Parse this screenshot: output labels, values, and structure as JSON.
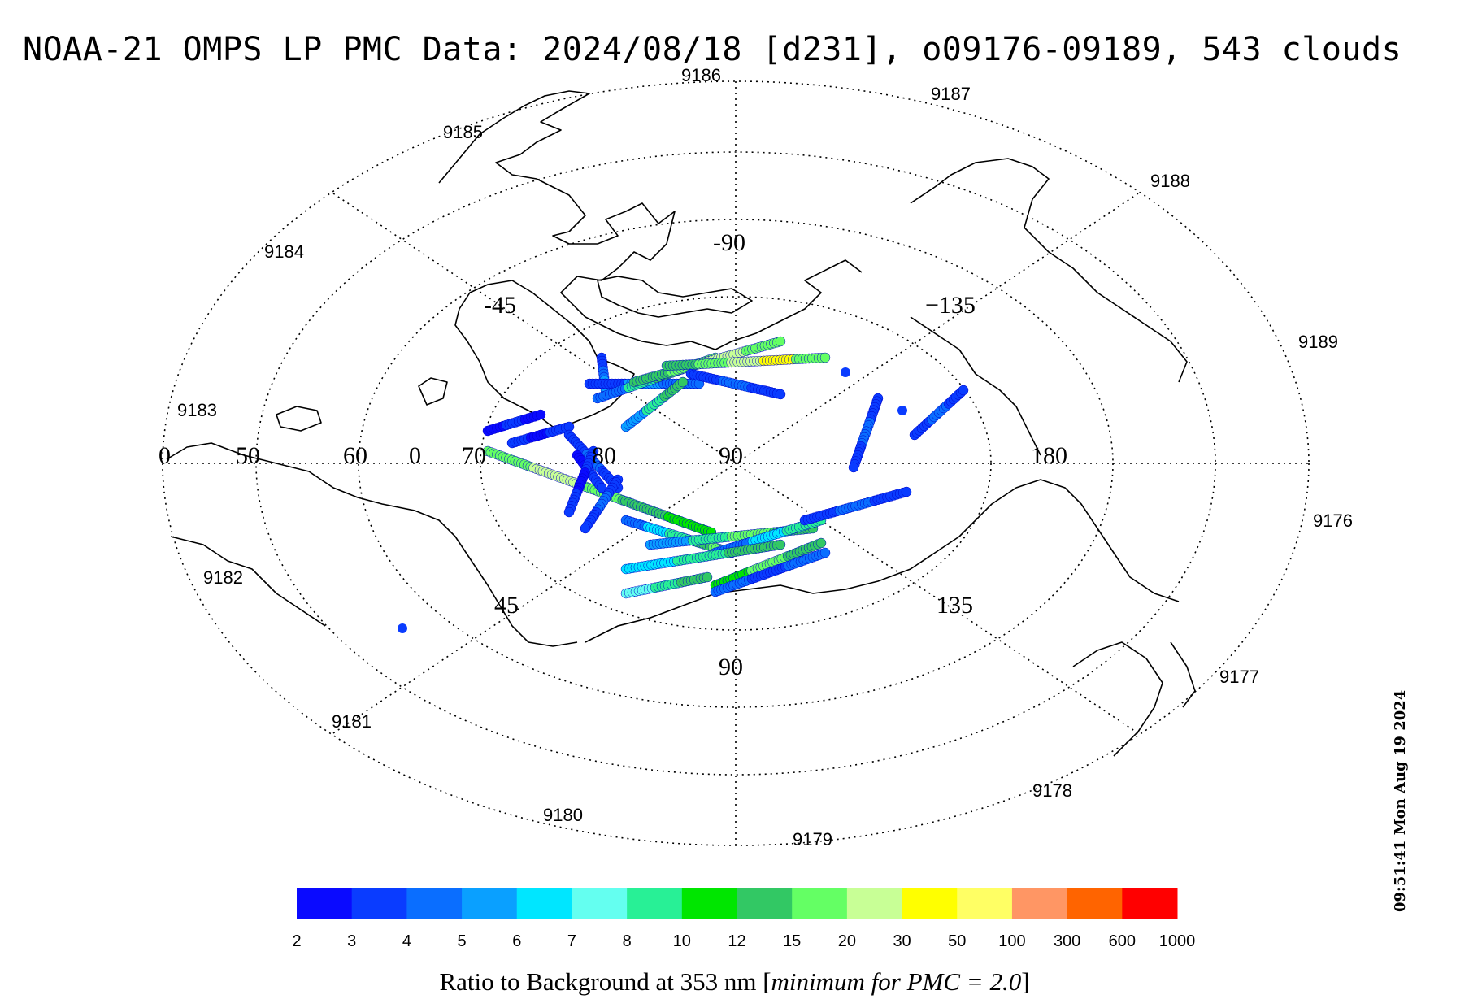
{
  "title": "NOAA-21 OMPS LP PMC Data: 2024/08/18 [d231], o09176-09189, 543 clouds",
  "timestamp": "09:51:41 Mon Aug 19 2024",
  "colorbar": {
    "caption_prefix": "Ratio to Background at 353 nm [",
    "caption_italic": "minimum for PMC = 2.0",
    "caption_suffix": "]",
    "ticks": [
      "2",
      "3",
      "4",
      "5",
      "6",
      "7",
      "8",
      "10",
      "12",
      "15",
      "20",
      "30",
      "50",
      "100",
      "300",
      "600",
      "1000"
    ],
    "colors": [
      "#0a0aff",
      "#0a3cff",
      "#0a6eff",
      "#0aa0ff",
      "#00e6ff",
      "#64fff0",
      "#28f096",
      "#00e600",
      "#32c864",
      "#64ff64",
      "#c8ff96",
      "#ffff00",
      "#ffff64",
      "#ff9664",
      "#ff6400",
      "#ff0000"
    ]
  },
  "map": {
    "projection": "north polar stereographic",
    "grid_labels": [
      {
        "id": "lon-0",
        "text": "0"
      },
      {
        "id": "lat-50",
        "text": "50"
      },
      {
        "id": "lat-60",
        "text": "60"
      },
      {
        "id": "lon-0b",
        "text": "0"
      },
      {
        "id": "lat-70",
        "text": "70"
      },
      {
        "id": "lat-80",
        "text": "80"
      },
      {
        "id": "lat-90",
        "text": "90"
      },
      {
        "id": "lon-180",
        "text": "180"
      },
      {
        "id": "lon-m90",
        "text": "-90"
      },
      {
        "id": "lon-m45",
        "text": "-45"
      },
      {
        "id": "lon-m135",
        "text": "−135"
      },
      {
        "id": "lon-45",
        "text": "45"
      },
      {
        "id": "lon-135",
        "text": "135"
      },
      {
        "id": "lon-90",
        "text": "90"
      }
    ],
    "orbit_labels": [
      "9176",
      "9177",
      "9178",
      "9179",
      "9180",
      "9181",
      "9182",
      "9183",
      "9184",
      "9185",
      "9186",
      "9187",
      "9188",
      "9189"
    ]
  }
}
